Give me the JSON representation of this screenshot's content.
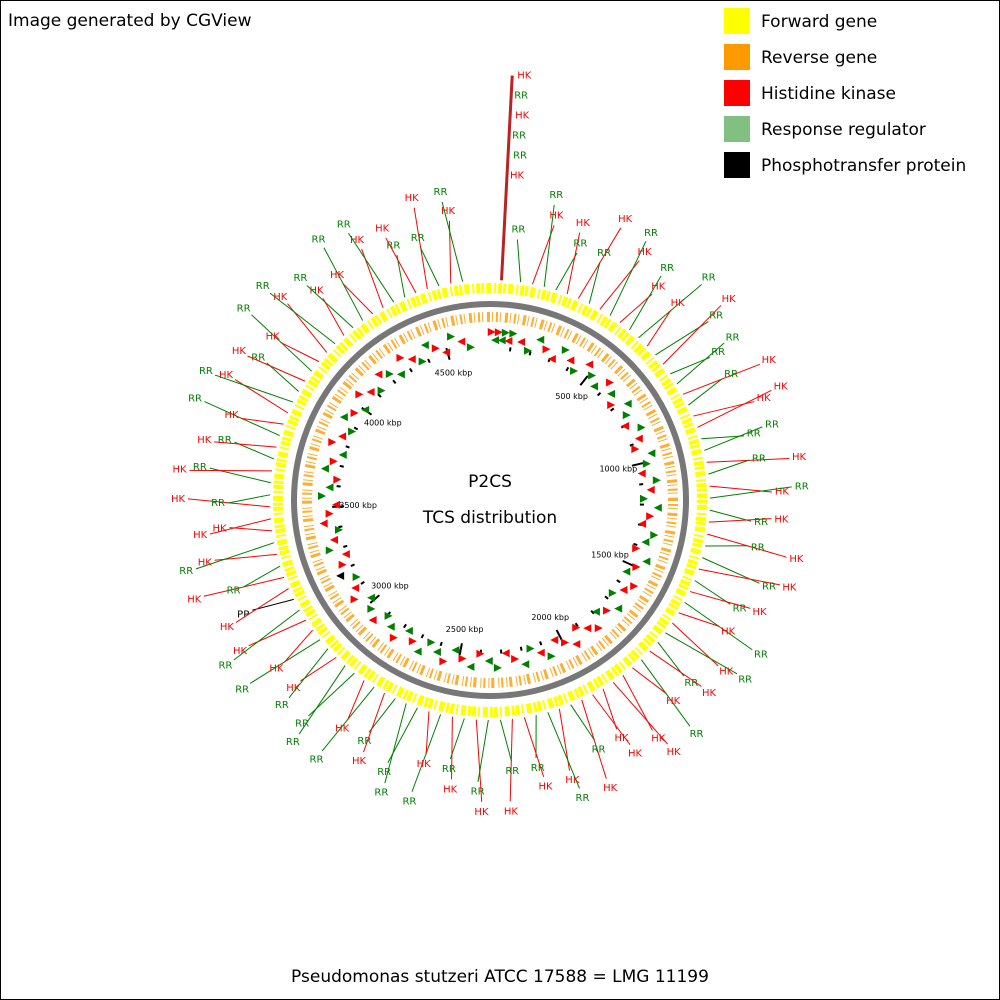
{
  "header": {
    "credit": "Image generated by CGView"
  },
  "legend": [
    {
      "name": "Forward gene",
      "color": "#ffff00"
    },
    {
      "name": "Reverse gene",
      "color": "#ff9900"
    },
    {
      "name": "Histidine kinase",
      "color": "#ff0000"
    },
    {
      "name": "Response regulator",
      "color": "#80c080"
    },
    {
      "name": "Phosphotransfer protein",
      "color": "#000000"
    }
  ],
  "map": {
    "title": "P2CS",
    "subtitle": "TCS distribution",
    "xlim": [
      0,
      4710
    ],
    "ticks": [
      {
        "value": 500,
        "label": "500 kbp"
      },
      {
        "value": 1000,
        "label": "1000 kbp"
      },
      {
        "value": 1500,
        "label": "1500 kbp"
      },
      {
        "value": 2000,
        "label": "2000 kbp"
      },
      {
        "value": 2500,
        "label": "2500 kbp"
      },
      {
        "value": 3000,
        "label": "3000 kbp"
      },
      {
        "value": 3500,
        "label": "3500 kbp"
      },
      {
        "value": 4000,
        "label": "4000 kbp"
      },
      {
        "value": 4500,
        "label": "4500 kbp"
      }
    ],
    "label_colors": {
      "HK": "#ff0000",
      "RR": "#008000",
      "PP": "#000000"
    },
    "spike": [
      "HK",
      "RR",
      "HK",
      "RR",
      "RR",
      "HK"
    ],
    "labels": [
      "RR",
      "HK",
      "RR",
      "RR",
      "HK",
      "HK",
      "RR",
      "HK",
      "RR",
      "HK",
      "RR",
      "RR",
      "HK",
      "RR",
      "HK",
      "RR",
      "RR",
      "HK",
      "RR",
      "HK",
      "HK",
      "RR",
      "RR",
      "HK",
      "RR",
      "HK",
      "RR",
      "RR",
      "HK",
      "HK",
      "RR",
      "RR",
      "HK",
      "RR",
      "HK",
      "RR",
      "HK",
      "HK",
      "RR",
      "RR",
      "HK",
      "RR",
      "HK",
      "HK",
      "HK",
      "HK",
      "HK",
      "HK",
      "RR",
      "HK",
      "RR",
      "RR",
      "HK",
      "HK",
      "RR",
      "RR",
      "HK",
      "RR",
      "HK",
      "RR",
      "HK",
      "RR",
      "RR",
      "RR",
      "HK",
      "RR",
      "HK",
      "RR",
      "RR",
      "HK",
      "RR",
      "RR",
      "HK",
      "HK",
      "RR",
      "PP",
      "HK",
      "HK",
      "RR",
      "HK",
      "RR",
      "HK",
      "HK",
      "HK",
      "RR",
      "RR",
      "HK",
      "RR",
      "HK",
      "RR",
      "HK",
      "HK",
      "RR",
      "RR",
      "HK",
      "RR",
      "HK",
      "HK",
      "RR",
      "HK",
      "RR",
      "RR",
      "HK",
      "HK",
      "RR",
      "RR",
      "HK",
      "HK",
      "RR",
      "HK",
      "RR"
    ]
  },
  "footer": "Pseudomonas stutzeri ATCC 17588 = LMG 11199"
}
